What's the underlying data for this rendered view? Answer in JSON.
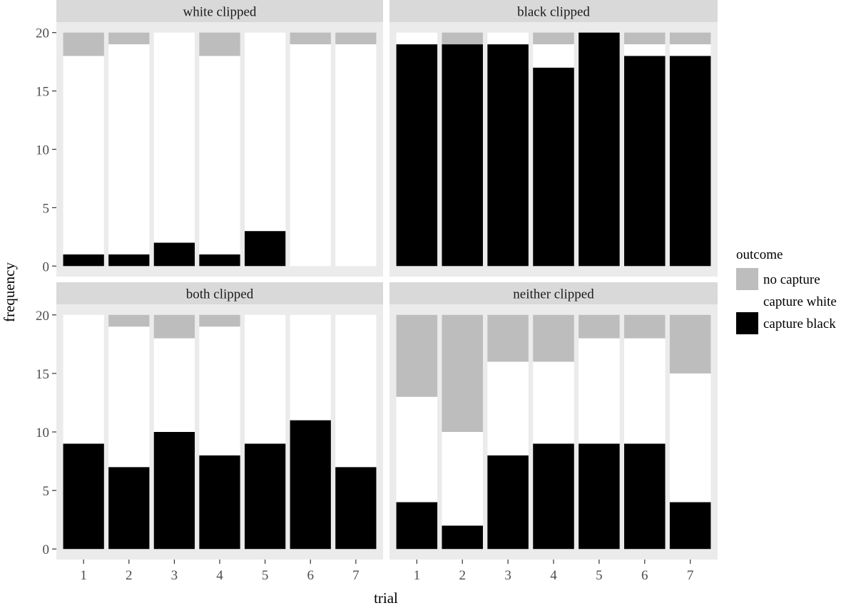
{
  "chart_data": {
    "type": "bar",
    "stacked": true,
    "xlabel": "trial",
    "ylabel": "frequency",
    "ylim": [
      0,
      20
    ],
    "yticks": [
      0,
      5,
      10,
      15,
      20
    ],
    "categories": [
      "1",
      "2",
      "3",
      "4",
      "5",
      "6",
      "7"
    ],
    "legend": {
      "title": "outcome",
      "placement": "right",
      "entries": [
        {
          "key": "no_capture",
          "label": "no capture",
          "color": "#bdbdbd"
        },
        {
          "key": "capture_white",
          "label": "capture white",
          "color": "#ffffff"
        },
        {
          "key": "capture_black",
          "label": "capture black",
          "color": "#000000"
        }
      ]
    },
    "stack_order": [
      "capture_black",
      "capture_white",
      "no_capture"
    ],
    "panels": [
      {
        "title": "white clipped",
        "series": {
          "capture_black": [
            1,
            1,
            2,
            1,
            3,
            0,
            0
          ],
          "capture_white": [
            17,
            18,
            18,
            17,
            17,
            19,
            19
          ],
          "no_capture": [
            2,
            1,
            0,
            2,
            0,
            1,
            1
          ]
        }
      },
      {
        "title": "black clipped",
        "series": {
          "capture_black": [
            19,
            19,
            19,
            17,
            20,
            18,
            18
          ],
          "capture_white": [
            1,
            0,
            1,
            2,
            0,
            1,
            1
          ],
          "no_capture": [
            0,
            1,
            0,
            1,
            0,
            1,
            1
          ]
        }
      },
      {
        "title": "both clipped",
        "series": {
          "capture_black": [
            9,
            7,
            10,
            8,
            9,
            11,
            7
          ],
          "capture_white": [
            11,
            12,
            8,
            11,
            11,
            9,
            13
          ],
          "no_capture": [
            0,
            1,
            2,
            1,
            0,
            0,
            0
          ]
        }
      },
      {
        "title": "neither clipped",
        "series": {
          "capture_black": [
            4,
            2,
            8,
            9,
            9,
            9,
            4
          ],
          "capture_white": [
            9,
            8,
            8,
            7,
            9,
            9,
            11
          ],
          "no_capture": [
            7,
            10,
            4,
            4,
            2,
            2,
            5
          ]
        }
      }
    ]
  }
}
